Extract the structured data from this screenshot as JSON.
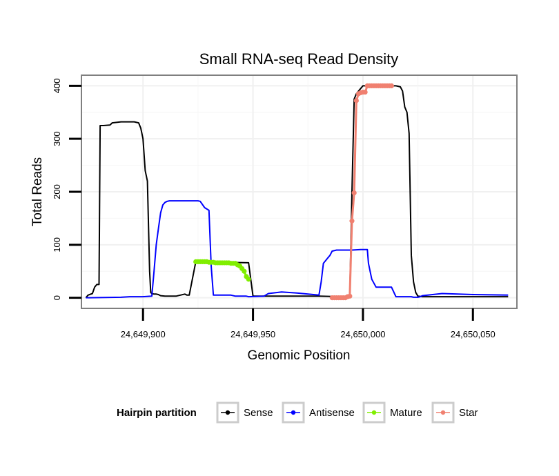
{
  "chart_data": {
    "type": "line",
    "title": "Small RNA-seq Read Density",
    "xlabel": "Genomic Position",
    "ylabel": "Total Reads",
    "xlim": [
      24649872,
      24650070
    ],
    "ylim": [
      -20,
      420
    ],
    "x_ticks": [
      24649900,
      24649950,
      24650000,
      24650050
    ],
    "x_tick_labels": [
      "24,649,900",
      "24,649,950",
      "24,650,000",
      "24,650,050"
    ],
    "y_ticks": [
      0,
      100,
      200,
      300,
      400
    ],
    "y_tick_labels": [
      "0",
      "100",
      "200",
      "300",
      "400"
    ],
    "grid": true,
    "legend": {
      "title": "Hairpin partition",
      "placement": "bottom",
      "entries": [
        "Sense",
        "Antisense",
        "Mature",
        "Star"
      ]
    },
    "series": [
      {
        "name": "Sense",
        "color": "#000000",
        "markers": false,
        "x": [
          24649874,
          24649875,
          24649877,
          24649878,
          24649879,
          24649880,
          24649880.5,
          24649882,
          24649885,
          24649886,
          24649890,
          24649896,
          24649898,
          24649899,
          24649900,
          24649901,
          24649902,
          24649903,
          24649903.5,
          24649904,
          24649905,
          24649906,
          24649907,
          24649908,
          24649910,
          24649915,
          24649917,
          24649919,
          24649920,
          24649921,
          24649924,
          24649948,
          24649950,
          24649970,
          24649980,
          24649990,
          24649993,
          24649994,
          24649995,
          24649996,
          24649997,
          24649998,
          24649999,
          24650000,
          24650003,
          24650007,
          24650015,
          24650017,
          24650018,
          24650019,
          24650020,
          24650021,
          24650022,
          24650023,
          24650024,
          24650025,
          24650027,
          24650030,
          24650050,
          24650066
        ],
        "y": [
          0,
          5,
          8,
          20,
          25,
          25,
          325,
          325,
          326,
          330,
          332,
          332,
          330,
          320,
          300,
          240,
          220,
          50,
          10,
          8,
          7,
          7,
          6,
          4,
          3,
          3,
          5,
          7,
          5,
          5,
          68,
          66,
          3,
          3,
          3,
          2,
          2,
          3,
          200,
          375,
          385,
          390,
          395,
          400,
          400,
          400,
          400,
          398,
          390,
          360,
          350,
          310,
          80,
          30,
          10,
          3,
          2,
          2,
          2,
          2
        ]
      },
      {
        "name": "Antisense",
        "color": "#0000ff",
        "markers": false,
        "x": [
          24649874,
          24649890,
          24649894,
          24649900,
          24649904,
          24649905,
          24649906,
          24649907,
          24649908,
          24649909,
          24649910,
          24649911,
          24649912,
          24649925,
          24649926,
          24649928,
          24649930,
          24649931,
          24649932,
          24649940,
          24649942,
          24649947,
          24649948,
          24649955,
          24649957,
          24649963,
          24649970,
          24649980,
          24649981,
          24649982,
          24649984,
          24649985,
          24649986,
          24649988,
          24649995,
          24649999,
          24650000,
          24650002,
          24650002.5,
          24650004,
          24650006,
          24650013,
          24650015,
          24650022,
          24650023,
          24650025,
          24650026,
          24650027,
          24650036,
          24650043,
          24650050,
          24650066
        ],
        "y": [
          0,
          1,
          2,
          2,
          3,
          50,
          100,
          130,
          160,
          175,
          180,
          182,
          183,
          183,
          182,
          170,
          165,
          60,
          5,
          5,
          3,
          3,
          2,
          3,
          8,
          11,
          9,
          5,
          30,
          65,
          75,
          80,
          88,
          90,
          90,
          91,
          91,
          91,
          65,
          35,
          20,
          20,
          2,
          2,
          1,
          1,
          2,
          4,
          8,
          7,
          6,
          5
        ]
      },
      {
        "name": "Mature",
        "color": "#80ee00",
        "markers": true,
        "x": [
          24649924,
          24649925,
          24649926,
          24649927,
          24649928,
          24649929,
          24649930,
          24649931,
          24649932,
          24649933,
          24649934,
          24649935,
          24649936,
          24649937,
          24649938,
          24649939,
          24649940,
          24649941,
          24649942,
          24649943,
          24649944,
          24649945,
          24649946,
          24649947,
          24649948
        ],
        "y": [
          68,
          68,
          68,
          68,
          68,
          68,
          67,
          67,
          67,
          66,
          66,
          66,
          66,
          66,
          66,
          66,
          65,
          65,
          65,
          62,
          60,
          55,
          50,
          40,
          35
        ]
      },
      {
        "name": "Star",
        "color": "#f08070",
        "markers": true,
        "x": [
          24649986,
          24649987,
          24649988,
          24649989,
          24649990,
          24649991,
          24649992,
          24649993,
          24649994,
          24649995,
          24649996,
          24649997,
          24649998,
          24649999,
          24650000,
          24650001,
          24650002,
          24650003,
          24650004,
          24650005,
          24650006,
          24650007,
          24650008,
          24650009,
          24650010,
          24650011,
          24650012,
          24650013
        ],
        "y": [
          0,
          0,
          0,
          0,
          0,
          0,
          0,
          2,
          3,
          145,
          198,
          372,
          385,
          387,
          388,
          388,
          400,
          400,
          400,
          400,
          400,
          400,
          400,
          400,
          400,
          400,
          400,
          400
        ]
      }
    ]
  }
}
